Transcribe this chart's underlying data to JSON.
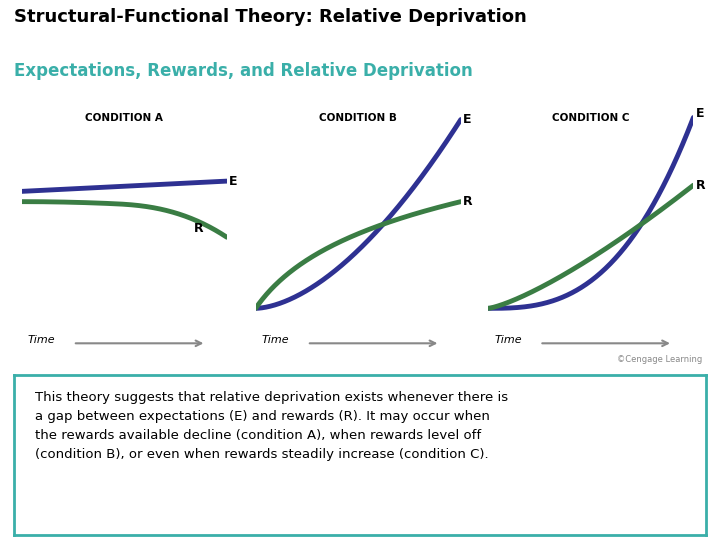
{
  "title": "Structural-Functional Theory: Relative Deprivation",
  "subtitle": "Expectations, Rewards, and Relative Deprivation",
  "title_color": "#000000",
  "subtitle_color": "#3aafa9",
  "bg_color": "#ffffff",
  "e_color": "#2e3192",
  "r_color": "#3a7d44",
  "condition_labels": [
    "CONDITION A",
    "CONDITION B",
    "CONDITION C"
  ],
  "time_label": "Time",
  "caption": "©Cengage Learning",
  "body_text": "This theory suggests that relative deprivation exists whenever there is\na gap between expectations (E) and rewards (R). It may occur when\nthe rewards available decline (condition A), when rewards level off\n(condition B), or even when rewards steadily increase (condition C).",
  "box_border_color": "#3aafa9",
  "box_bg_color": "#ffffff"
}
